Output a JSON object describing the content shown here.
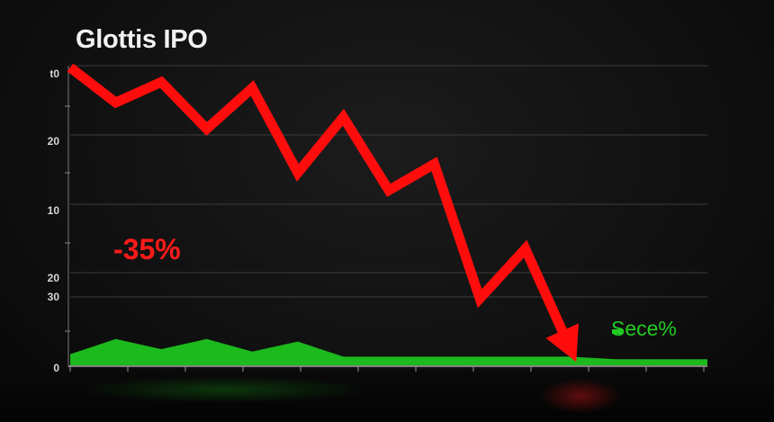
{
  "chart_data": {
    "type": "line",
    "title": "Glottis IPO",
    "xlabel": "",
    "ylabel": "",
    "y_tick_labels": [
      "t0",
      "20",
      "10",
      "20",
      "30",
      "0"
    ],
    "grid": true,
    "series": [
      {
        "color": "#ff0d0d",
        "x": [
          0,
          1,
          2,
          3,
          4,
          5,
          6,
          7,
          8,
          9,
          10,
          11,
          12,
          13,
          14
        ],
        "values": [
          100,
          88,
          95,
          79,
          93,
          64,
          83,
          58,
          67,
          21,
          38,
          3,
          0,
          0,
          0
        ]
      },
      {
        "color": "#1ec41e",
        "x": [
          0,
          1,
          2,
          3,
          4,
          5,
          6,
          7,
          8,
          9,
          10,
          11,
          12,
          13,
          14
        ],
        "values": [
          3,
          9,
          5,
          9,
          4,
          8,
          2,
          2,
          2,
          2,
          2,
          2,
          1,
          1,
          1
        ]
      }
    ],
    "annotations": [
      {
        "text": "-35%",
        "color": "#ff1a1a"
      },
      {
        "text": "Sece%",
        "color": "#22cc22"
      }
    ]
  }
}
